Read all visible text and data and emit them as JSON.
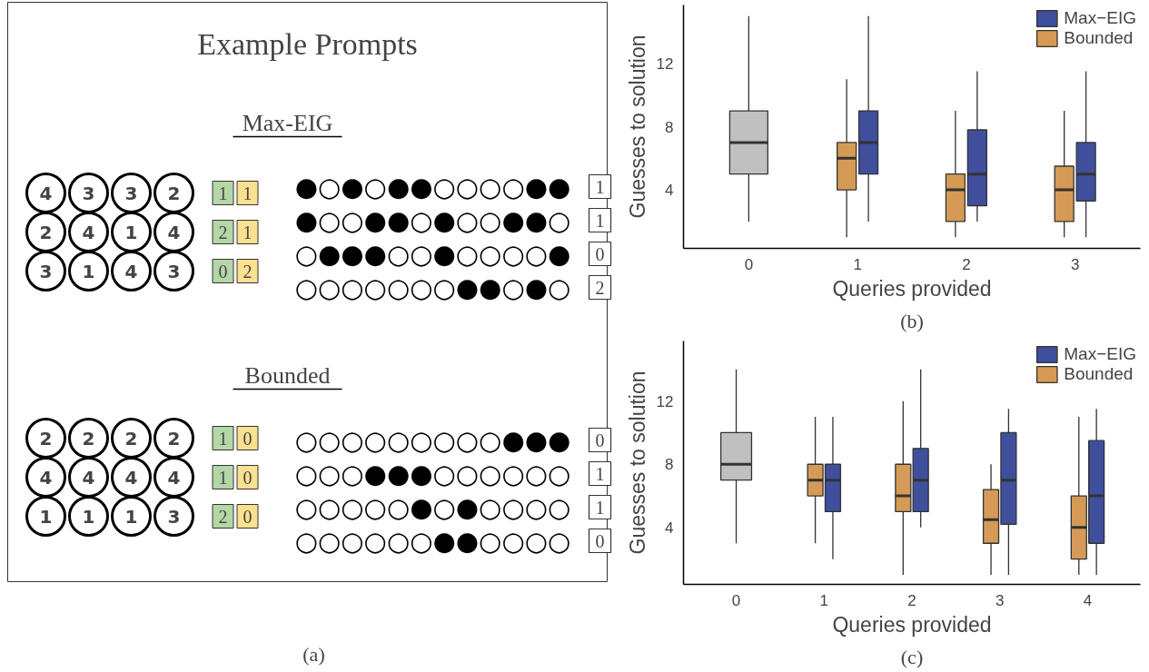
{
  "chart_data": [
    {
      "type": "other",
      "title": "Example Prompts",
      "annotations": [
        "Max-EIG",
        "4 3 3 2",
        "2 4 1 4",
        "3 1 4 3",
        "1 1",
        "2 1",
        "0 2",
        "●○●○●●○○○○●●",
        "●○○●●○●○○●●○",
        "○●●●○○●○○○○●",
        "○○○○○○○●●○●○",
        "1",
        "1",
        "0",
        "2",
        "Bounded",
        "2 2 2 2",
        "4 4 4 4",
        "1 1 1 3",
        "1 0",
        "1 0",
        "2 0",
        "○○○○○○○○○●●●",
        "○○○●●●○○○○○○",
        "○○○○○●○●○○○○",
        "○○○○○○●●○○○○",
        "0",
        "1",
        "1",
        "0",
        "(a)"
      ]
    },
    {
      "type": "box",
      "categories": [
        "0",
        "1",
        "2",
        "3"
      ],
      "xlabel": "Queries provided",
      "ylabel": "Guesses to solution",
      "ylim": [
        0.3,
        15.7
      ],
      "yticks": [
        4,
        8,
        12
      ],
      "grid": false,
      "legend": "top right",
      "annotations": [
        "(b)"
      ],
      "series": [
        {
          "color": "#c0c0c0",
          "boxes": [
            {
              "low": 2,
              "q1": 5,
              "median": 7,
              "q3": 9,
              "high": 15
            },
            null,
            null,
            null
          ]
        },
        {
          "name": "Bounded",
          "color": "#d59a55",
          "boxes": [
            null,
            {
              "low": 1,
              "q1": 4,
              "median": 6,
              "q3": 7,
              "high": 11
            },
            {
              "low": 1,
              "q1": 2,
              "median": 4,
              "q3": 5,
              "high": 9
            },
            {
              "low": 1,
              "q1": 2,
              "median": 4,
              "q3": 5.5,
              "high": 9
            }
          ]
        },
        {
          "name": "Max−EIG",
          "color": "#3f4f9c",
          "boxes": [
            null,
            {
              "low": 2,
              "q1": 5,
              "median": 7,
              "q3": 9,
              "high": 15
            },
            {
              "low": 2,
              "q1": 3,
              "median": 5,
              "q3": 7.8,
              "high": 11.5
            },
            {
              "low": 1,
              "q1": 3.3,
              "median": 5,
              "q3": 7,
              "high": 11.5
            }
          ]
        }
      ]
    },
    {
      "type": "box",
      "categories": [
        "0",
        "1",
        "2",
        "3",
        "4"
      ],
      "xlabel": "Queries provided",
      "ylabel": "Guesses to solution",
      "ylim": [
        0.4,
        15.8
      ],
      "yticks": [
        4,
        8,
        12
      ],
      "grid": false,
      "legend": "top right",
      "annotations": [
        "(c)"
      ],
      "series": [
        {
          "color": "#c0c0c0",
          "boxes": [
            {
              "low": 3,
              "q1": 7,
              "median": 8,
              "q3": 10,
              "high": 14
            },
            null,
            null,
            null,
            null
          ]
        },
        {
          "name": "Bounded",
          "color": "#d59a55",
          "boxes": [
            null,
            {
              "low": 3,
              "q1": 6,
              "median": 7,
              "q3": 8,
              "high": 11
            },
            {
              "low": 1,
              "q1": 5,
              "median": 6,
              "q3": 8,
              "high": 12
            },
            {
              "low": 1,
              "q1": 3,
              "median": 4.5,
              "q3": 6.4,
              "high": 8
            },
            {
              "low": 1,
              "q1": 2,
              "median": 4,
              "q3": 6,
              "high": 11
            }
          ]
        },
        {
          "name": "Max−EIG",
          "color": "#3f4f9c",
          "boxes": [
            null,
            {
              "low": 2,
              "q1": 5,
              "median": 7,
              "q3": 8,
              "high": 11
            },
            {
              "low": 4,
              "q1": 5,
              "median": 7,
              "q3": 9,
              "high": 14
            },
            {
              "low": 1,
              "q1": 4.2,
              "median": 7,
              "q3": 10,
              "high": 11.5
            },
            {
              "low": 1,
              "q1": 3,
              "median": 6,
              "q3": 9.5,
              "high": 11.5
            }
          ]
        }
      ]
    }
  ]
}
